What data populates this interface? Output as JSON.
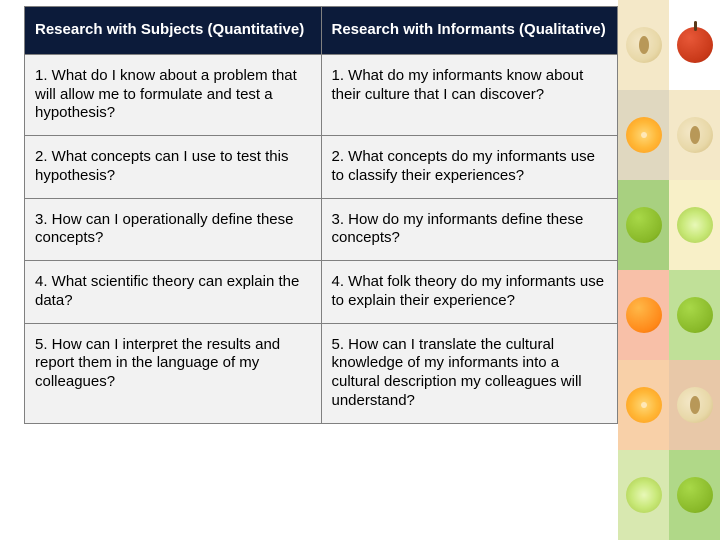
{
  "table": {
    "headers": {
      "left": "Research with Subjects (Quantitative)",
      "right": "Research with Informants (Qualitative)"
    },
    "rows": [
      {
        "left": "1. What do I know about a problem that will allow me to formulate and test a hypothesis?",
        "right": "1. What do my informants know about their culture that I can discover?"
      },
      {
        "left": "2. What concepts can I use to test this hypothesis?",
        "right": "2. What concepts do my informants use to classify their experiences?"
      },
      {
        "left": "3. How can I operationally define these concepts?",
        "right": "3. How do my informants define these concepts?"
      },
      {
        "left": "4. What scientific theory can explain the data?",
        "right": "4. What folk theory do my informants use to explain their experience?"
      },
      {
        "left": "5. How can I interpret the results and report them in the language of my colleagues?",
        "right": "5. How can I translate the cultural knowledge of my informants into a cultural description my colleagues will understand?"
      }
    ]
  },
  "tiles": [
    {
      "bg": "#f4e8c8",
      "fruit": "apple-half"
    },
    {
      "bg": "#ffffff",
      "fruit": "apple-red"
    },
    {
      "bg": "#e0d8c0",
      "fruit": "orange-half"
    },
    {
      "bg": "#f4e8c8",
      "fruit": "apple-half"
    },
    {
      "bg": "#a8d080",
      "fruit": "apple-green"
    },
    {
      "bg": "#f8f0c8",
      "fruit": "lime-half"
    },
    {
      "bg": "#f8c0a8",
      "fruit": "orange-whole"
    },
    {
      "bg": "#c0e098",
      "fruit": "apple-green"
    },
    {
      "bg": "#f8d0a8",
      "fruit": "orange-half"
    },
    {
      "bg": "#e8c8a8",
      "fruit": "apple-half"
    },
    {
      "bg": "#d8e8b0",
      "fruit": "lime-half"
    },
    {
      "bg": "#b0d888",
      "fruit": "apple-green"
    }
  ]
}
